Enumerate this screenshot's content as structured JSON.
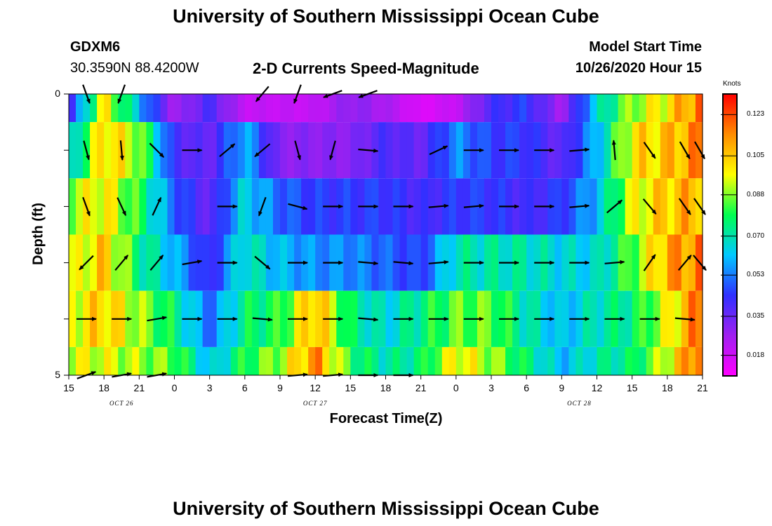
{
  "header": {
    "title": "University of Southern Mississippi Ocean Cube",
    "station_id": "GDXM6",
    "station_coords": "30.3590N 88.4200W",
    "plot_title": "2-D Currents Speed-Magnitude",
    "model_start_label": "Model Start Time",
    "model_start_value": "10/26/2020 Hour 15"
  },
  "footer": {
    "title": "University of Southern Mississippi Ocean Cube"
  },
  "chart_data": {
    "type": "heatmap",
    "title": "2-D Currents Speed-Magnitude",
    "xlabel": "Forecast Time(Z)",
    "ylabel": "Depth (ft)",
    "x_tick_labels": [
      "15",
      "18",
      "21",
      "0",
      "3",
      "6",
      "9",
      "12",
      "15",
      "18",
      "21",
      "0",
      "3",
      "6",
      "9",
      "12",
      "15",
      "18",
      "21"
    ],
    "date_labels": [
      {
        "label": "OCT 26",
        "tick_index": 1.5
      },
      {
        "label": "OCT 27",
        "tick_index": 7
      },
      {
        "label": "OCT 28",
        "tick_index": 14.5
      }
    ],
    "y_tick_labels": [
      "0",
      "",
      "",
      "",
      "",
      "5"
    ],
    "ylim": [
      0,
      5
    ],
    "x_hours": [
      0,
      54
    ],
    "colorbar": {
      "label": "Knots",
      "min": 0.009,
      "max": 0.132,
      "ticks": [
        "0.123",
        "0.105",
        "0.088",
        "0.070",
        "0.053",
        "0.035",
        "0.018"
      ],
      "tick_values": [
        0.123,
        0.105,
        0.088,
        0.07,
        0.053,
        0.035,
        0.018
      ],
      "colors": [
        "#ff00ff",
        "#a020f0",
        "#3030ff",
        "#00c8ff",
        "#00ff50",
        "#ffff00",
        "#ff8c00",
        "#ff0000"
      ]
    },
    "depths": [
      0,
      1,
      2,
      3,
      4,
      5
    ],
    "time_anchors": [
      0,
      3,
      6,
      9,
      12,
      15,
      18,
      21,
      24,
      27,
      30,
      33,
      36,
      39,
      42,
      45,
      48,
      51,
      54
    ],
    "speed": [
      [
        0.035,
        0.1,
        0.06,
        0.025,
        0.04,
        0.02,
        0.02,
        0.02,
        0.03,
        0.025,
        0.015,
        0.02,
        0.04,
        0.045,
        0.025,
        0.065,
        0.09,
        0.1,
        0.12
      ],
      [
        0.06,
        0.105,
        0.09,
        0.04,
        0.035,
        0.06,
        0.03,
        0.03,
        0.03,
        0.04,
        0.035,
        0.055,
        0.045,
        0.045,
        0.035,
        0.06,
        0.1,
        0.105,
        0.115
      ],
      [
        0.09,
        0.1,
        0.08,
        0.05,
        0.035,
        0.065,
        0.05,
        0.045,
        0.045,
        0.045,
        0.04,
        0.045,
        0.045,
        0.04,
        0.045,
        0.06,
        0.095,
        0.105,
        0.11
      ],
      [
        0.09,
        0.105,
        0.075,
        0.06,
        0.04,
        0.07,
        0.06,
        0.055,
        0.055,
        0.05,
        0.045,
        0.07,
        0.07,
        0.07,
        0.065,
        0.065,
        0.085,
        0.11,
        0.115
      ],
      [
        0.095,
        0.105,
        0.09,
        0.075,
        0.05,
        0.075,
        0.08,
        0.11,
        0.075,
        0.065,
        0.075,
        0.085,
        0.085,
        0.07,
        0.06,
        0.07,
        0.075,
        0.095,
        0.12
      ],
      [
        0.095,
        0.095,
        0.09,
        0.085,
        0.06,
        0.08,
        0.09,
        0.115,
        0.08,
        0.07,
        0.075,
        0.1,
        0.09,
        0.075,
        0.06,
        0.07,
        0.075,
        0.095,
        0.125
      ]
    ],
    "vectors": [
      {
        "depth": 0,
        "dirs": [
          160,
          200,
          null,
          null,
          null,
          220,
          200,
          250,
          250,
          null,
          null,
          null,
          null,
          null,
          null,
          null,
          null,
          null,
          null
        ]
      },
      {
        "depth": 1,
        "dirs": [
          165,
          175,
          135,
          90,
          50,
          230,
          165,
          195,
          95,
          null,
          65,
          90,
          90,
          90,
          85,
          355,
          145,
          150,
          150
        ]
      },
      {
        "depth": 2,
        "dirs": [
          160,
          155,
          25,
          null,
          90,
          200,
          105,
          90,
          90,
          90,
          85,
          85,
          90,
          90,
          85,
          50,
          140,
          145,
          145
        ]
      },
      {
        "depth": 3,
        "dirs": [
          225,
          40,
          40,
          80,
          90,
          130,
          90,
          90,
          95,
          95,
          85,
          90,
          90,
          90,
          90,
          85,
          35,
          40,
          140
        ]
      },
      {
        "depth": 4,
        "dirs": [
          90,
          90,
          80,
          90,
          90,
          95,
          90,
          90,
          95,
          90,
          90,
          90,
          90,
          90,
          90,
          90,
          90,
          95,
          null
        ]
      },
      {
        "depth": 5,
        "dirs": [
          70,
          80,
          80,
          null,
          null,
          null,
          85,
          85,
          90,
          90,
          null,
          null,
          null,
          null,
          null,
          null,
          null,
          null,
          null
        ]
      }
    ]
  }
}
